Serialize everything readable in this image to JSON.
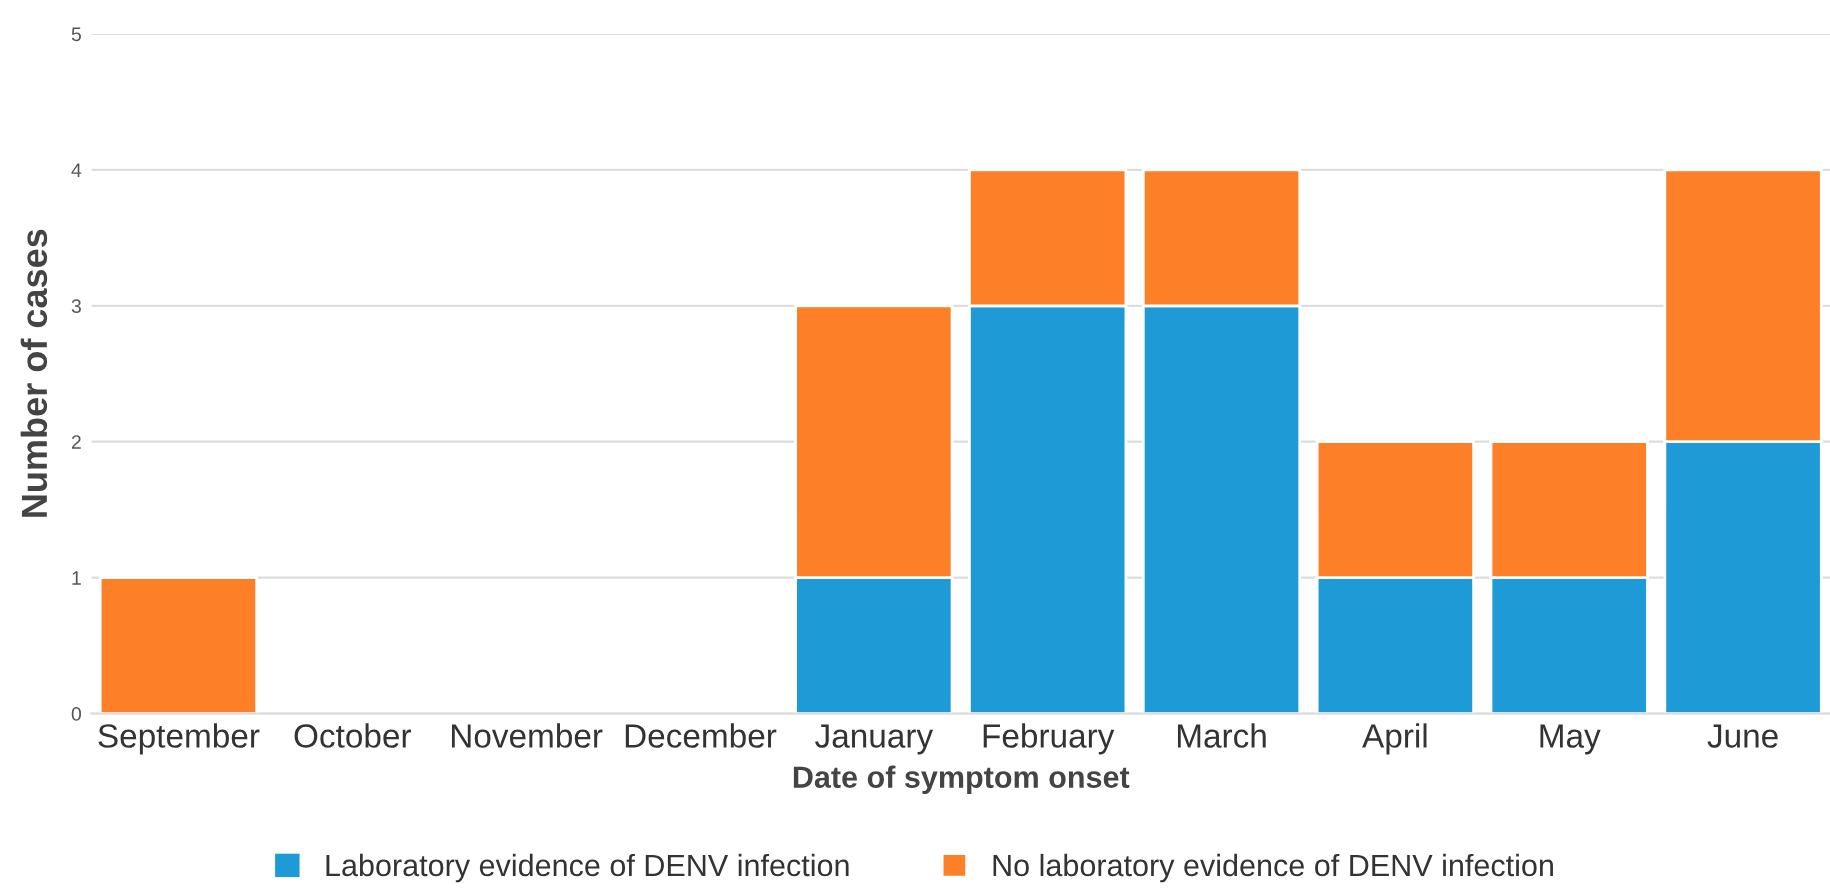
{
  "chart_data": {
    "type": "bar",
    "stacked": true,
    "xlabel": "Date of symptom onset",
    "ylabel": "Number of cases",
    "categories": [
      "September",
      "October",
      "November",
      "December",
      "January",
      "February",
      "March",
      "April",
      "May",
      "June"
    ],
    "series": [
      {
        "name": "Laboratory evidence of DENV infection",
        "color": "#1e9bd7",
        "values": [
          0,
          0,
          0,
          0,
          1,
          3,
          3,
          1,
          1,
          2
        ]
      },
      {
        "name": "No laboratory evidence of DENV infection",
        "color": "#fd7f28",
        "values": [
          1,
          0,
          0,
          0,
          2,
          1,
          1,
          1,
          1,
          2
        ]
      }
    ],
    "ylim": [
      0,
      5
    ],
    "yticks": [
      0,
      1,
      2,
      3,
      4,
      5
    ],
    "grid": "y",
    "legend": "bottom"
  }
}
